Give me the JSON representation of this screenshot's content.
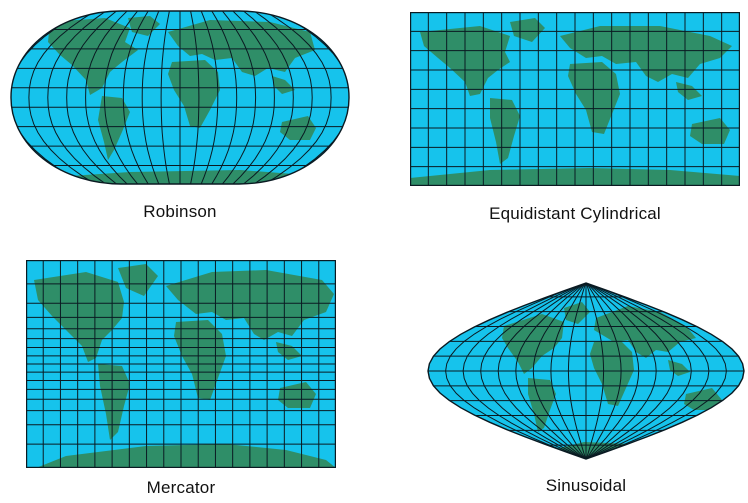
{
  "colors": {
    "ocean": "#16c3ec",
    "land": "#2f8e68",
    "grid": "#0a1a22"
  },
  "projections": [
    {
      "id": "robinson",
      "label": "Robinson",
      "shape": "rounded-ellipse"
    },
    {
      "id": "equidistant-cylindrical",
      "label": "Equidistant Cylindrical",
      "shape": "rectangle"
    },
    {
      "id": "mercator",
      "label": "Mercator",
      "shape": "rectangle"
    },
    {
      "id": "sinusoidal",
      "label": "Sinusoidal",
      "shape": "sinusoid"
    }
  ]
}
